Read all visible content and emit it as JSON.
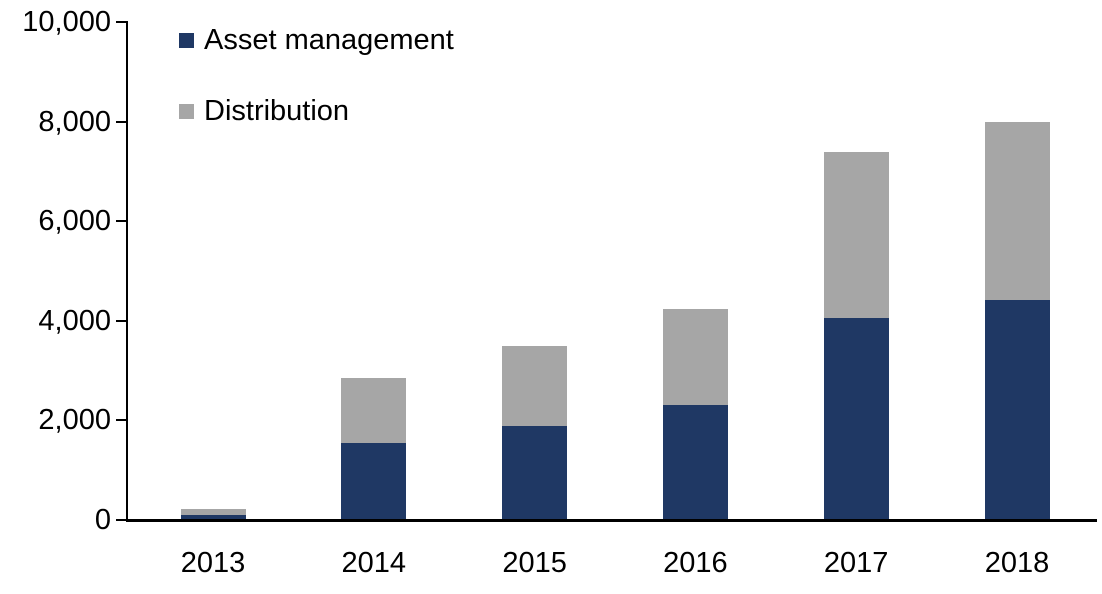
{
  "chart_data": {
    "type": "bar",
    "stacked": true,
    "title": "",
    "xlabel": "",
    "ylabel": "",
    "categories": [
      "2013",
      "2014",
      "2015",
      "2016",
      "2017",
      "2018"
    ],
    "series": [
      {
        "name": "Asset management",
        "color": "#1F3864",
        "values": [
          100,
          1540,
          1890,
          2300,
          4050,
          4420
        ]
      },
      {
        "name": "Distribution",
        "color": "#A6A6A6",
        "values": [
          120,
          1310,
          1610,
          1930,
          3340,
          3580
        ]
      }
    ],
    "ylim": [
      0,
      10000
    ],
    "ytick_values": [
      0,
      2000,
      4000,
      6000,
      8000,
      10000
    ],
    "ytick_labels": [
      "0",
      "2,000",
      "4,000",
      "6,000",
      "8,000",
      "10,000"
    ],
    "grid": false,
    "legend_position": "top-left",
    "axis_color": "#000000",
    "background_color": "#FFFFFF"
  }
}
